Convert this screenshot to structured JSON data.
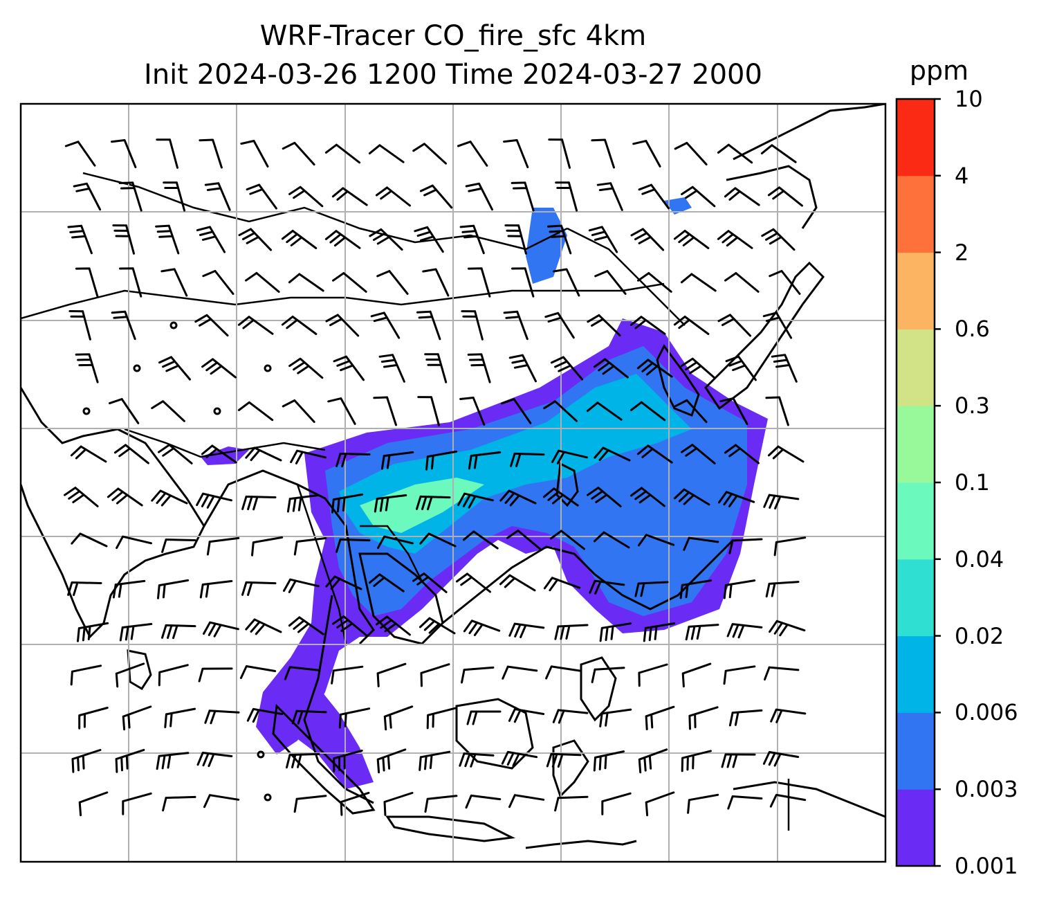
{
  "title": {
    "line1": "WRF-Tracer CO_fire_sfc 4km",
    "line2": "Init 2024-03-26 1200 Time 2024-03-27 2000"
  },
  "colorbar": {
    "unit": "ppm",
    "ticks": [
      "0.001",
      "0.003",
      "0.006",
      "0.02",
      "0.04",
      "0.1",
      "0.3",
      "0.6",
      "2",
      "4",
      "10"
    ],
    "colors": [
      "#6a2cf5",
      "#3275f2",
      "#00b4e8",
      "#2fe0d2",
      "#6cf9be",
      "#98f99a",
      "#d1e287",
      "#fdb462",
      "#fe713b",
      "#fb2a15"
    ]
  },
  "map": {
    "grid": true,
    "gridlines_x": 7,
    "gridlines_y": 6,
    "variable": "CO_fire_sfc",
    "wind_barbs": true
  }
}
